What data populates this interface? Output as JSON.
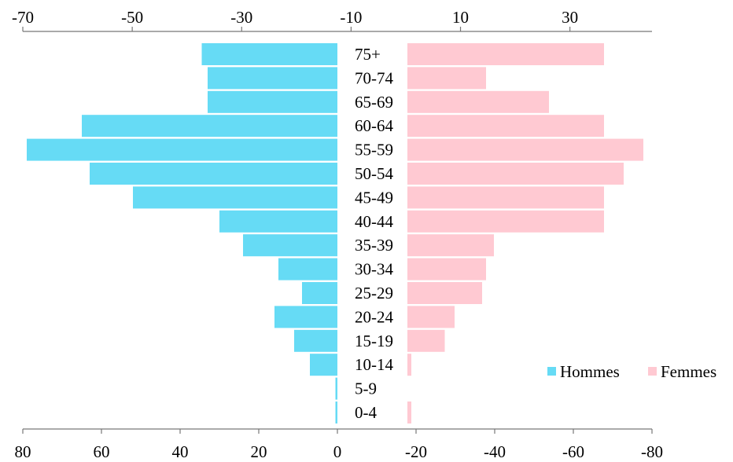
{
  "chart_data": {
    "type": "bar",
    "orientation": "horizontal",
    "categories": [
      "75+",
      "70-74",
      "65-69",
      "60-64",
      "55-59",
      "50-54",
      "45-49",
      "40-44",
      "35-39",
      "30-34",
      "25-29",
      "20-24",
      "15-19",
      "10-14",
      "5-9",
      "0-4"
    ],
    "series": [
      {
        "name": "Hommes",
        "color": "#66dbf5",
        "values": [
          34.5,
          33,
          33,
          65,
          79,
          63,
          52,
          30,
          24,
          15,
          9,
          16,
          11,
          7,
          0.5,
          0.5
        ]
      },
      {
        "name": "Femmes",
        "color": "#ffc9d2",
        "values": [
          50,
          20,
          36,
          50,
          60,
          55,
          50,
          50,
          22,
          20,
          19,
          12,
          9.5,
          1,
          0,
          1
        ]
      }
    ],
    "top_axis": {
      "ticks": [
        -70,
        -50,
        -30,
        -10,
        10,
        30
      ],
      "labels": [
        "-70",
        "-50",
        "-30",
        "-10",
        "10",
        "30"
      ]
    },
    "bottom_axis": {
      "ticks": [
        80,
        60,
        40,
        20,
        0,
        -20,
        -40,
        -60,
        -80
      ],
      "labels": [
        "80",
        "60",
        "40",
        "20",
        "0",
        "-20",
        "-40",
        "-60",
        "-80"
      ]
    },
    "legend_position": "bottom-right",
    "grid": false
  }
}
